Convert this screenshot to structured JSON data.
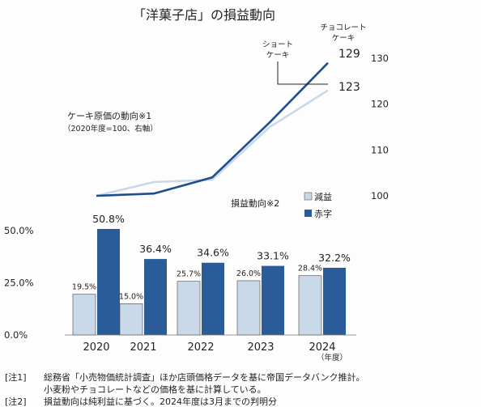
{
  "chart_data": [
    {
      "type": "line",
      "title": "「洋菓子店」の損益動向",
      "label": "ケーキ原価の動向※1",
      "sublabel": "（2020年度=100、右軸）",
      "x": [
        "2020",
        "2021",
        "2022",
        "2023",
        "2024"
      ],
      "series": [
        {
          "name": "ショート\nケーキ",
          "values": [
            100,
            103,
            103.5,
            115,
            123
          ],
          "end_label": "123",
          "color": "#c9d9ea"
        },
        {
          "name": "チョコレート\nケーキ",
          "values": [
            100,
            100.5,
            104,
            116,
            129
          ],
          "end_label": "129",
          "color": "#1f4e8c"
        }
      ],
      "right_axis": {
        "ticks": [
          "130",
          "120",
          "110",
          "100"
        ],
        "ylim": [
          100,
          130
        ]
      }
    },
    {
      "type": "bar",
      "title": "損益動向※2",
      "categories": [
        "2020",
        "2021",
        "2022",
        "2023",
        "2024"
      ],
      "category_suffix": "（年度）",
      "series": [
        {
          "name": "減益",
          "values": [
            19.5,
            15.0,
            25.7,
            26.0,
            28.4
          ],
          "labels": [
            "19.5%",
            "15.0%",
            "25.7%",
            "26.0%",
            "28.4%"
          ],
          "color": "#c9d9ea"
        },
        {
          "name": "赤字",
          "values": [
            50.8,
            36.4,
            34.6,
            33.1,
            32.2
          ],
          "labels": [
            "50.8%",
            "36.4%",
            "34.6%",
            "33.1%",
            "32.2%"
          ],
          "color": "#2a5c9a"
        }
      ],
      "y_ticks": [
        "50.0%",
        "25.0%",
        "0.0%"
      ],
      "ylim": [
        0,
        50
      ]
    }
  ],
  "notes": [
    {
      "tag": "[注1]",
      "text": "総務省「小売物価統計調査」ほか店頭価格データを基に帝国データバンク推計。"
    },
    {
      "tag": "",
      "text": "小麦粉やチョコレートなどの価格を基に計算している。"
    },
    {
      "tag": "[注2]",
      "text": "損益動向は純利益に基づく。2024年度は3月までの判明分"
    }
  ],
  "colors": {
    "light": "#c9d9ea",
    "dark": "#2a5c9a",
    "line_dark": "#1f4e8c"
  }
}
